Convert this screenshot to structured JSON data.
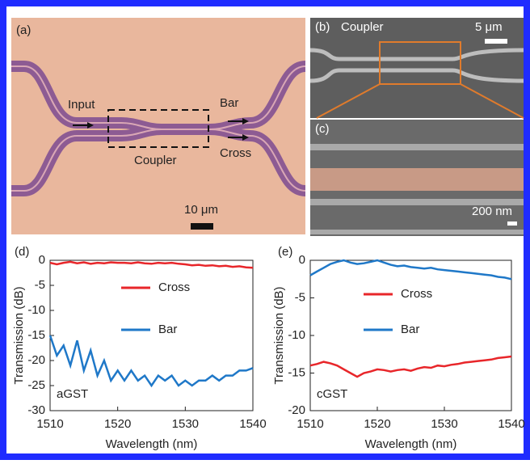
{
  "panels": {
    "a": {
      "label": "(a)",
      "input": "Input",
      "bar": "Bar",
      "cross": "Cross",
      "coupler": "Coupler",
      "scale": "10 μm"
    },
    "b": {
      "label": "(b)",
      "title": "Coupler",
      "scale": "5 μm"
    },
    "c": {
      "label": "(c)",
      "scale": "200 nm"
    }
  },
  "chart_data": [
    {
      "type": "line",
      "panel_label": "(d)",
      "annotation": "aGST",
      "xlabel": "Wavelength (nm)",
      "ylabel": "Transmission (dB)",
      "x": [
        1510,
        1511,
        1512,
        1513,
        1514,
        1515,
        1516,
        1517,
        1518,
        1519,
        1520,
        1521,
        1522,
        1523,
        1524,
        1525,
        1526,
        1527,
        1528,
        1529,
        1530,
        1531,
        1532,
        1533,
        1534,
        1535,
        1536,
        1537,
        1538,
        1539,
        1540
      ],
      "xlim": [
        1510,
        1540
      ],
      "xticks": [
        1510,
        1520,
        1530,
        1540
      ],
      "ylim": [
        -30,
        0
      ],
      "yticks": [
        0,
        -5,
        -10,
        -15,
        -20,
        -25,
        -30
      ],
      "series": [
        {
          "name": "Cross",
          "color": "#e8262a",
          "values": [
            -0.5,
            -0.8,
            -0.5,
            -0.3,
            -0.6,
            -0.4,
            -0.7,
            -0.5,
            -0.6,
            -0.4,
            -0.5,
            -0.5,
            -0.6,
            -0.4,
            -0.6,
            -0.7,
            -0.5,
            -0.6,
            -0.5,
            -0.7,
            -0.8,
            -1,
            -0.9,
            -1.1,
            -1,
            -1.2,
            -1.1,
            -1.3,
            -1.2,
            -1.4,
            -1.5
          ]
        },
        {
          "name": "Bar",
          "color": "#1f78c8",
          "values": [
            -15,
            -19,
            -17,
            -21,
            -16,
            -22,
            -18,
            -23,
            -20,
            -24,
            -22,
            -24,
            -22,
            -24,
            -23,
            -25,
            -23,
            -24,
            -23,
            -25,
            -24,
            -25,
            -24,
            -24,
            -23,
            -24,
            -23,
            -23,
            -22,
            -22,
            -21.5
          ]
        }
      ]
    },
    {
      "type": "line",
      "panel_label": "(e)",
      "annotation": "cGST",
      "xlabel": "Wavelength (nm)",
      "ylabel": "Transmission (dB)",
      "x": [
        1510,
        1511,
        1512,
        1513,
        1514,
        1515,
        1516,
        1517,
        1518,
        1519,
        1520,
        1521,
        1522,
        1523,
        1524,
        1525,
        1526,
        1527,
        1528,
        1529,
        1530,
        1531,
        1532,
        1533,
        1534,
        1535,
        1536,
        1537,
        1538,
        1539,
        1540
      ],
      "xlim": [
        1510,
        1540
      ],
      "xticks": [
        1510,
        1520,
        1530,
        1540
      ],
      "ylim": [
        -20,
        0
      ],
      "yticks": [
        0,
        -5,
        -10,
        -15,
        -20
      ],
      "series": [
        {
          "name": "Cross",
          "color": "#e8262a",
          "values": [
            -14,
            -13.8,
            -13.5,
            -13.7,
            -14,
            -14.5,
            -15,
            -15.5,
            -15,
            -14.8,
            -14.5,
            -14.6,
            -14.8,
            -14.6,
            -14.5,
            -14.7,
            -14.4,
            -14.2,
            -14.3,
            -14,
            -14.1,
            -13.9,
            -13.8,
            -13.6,
            -13.5,
            -13.4,
            -13.3,
            -13.2,
            -13,
            -12.9,
            -12.8
          ]
        },
        {
          "name": "Bar",
          "color": "#1f78c8",
          "values": [
            -2,
            -1.5,
            -1,
            -0.5,
            -0.2,
            0,
            -0.3,
            -0.5,
            -0.4,
            -0.2,
            0,
            -0.3,
            -0.6,
            -0.8,
            -0.7,
            -0.9,
            -1,
            -1.1,
            -1,
            -1.2,
            -1.3,
            -1.4,
            -1.5,
            -1.6,
            -1.7,
            -1.8,
            -1.9,
            -2,
            -2.2,
            -2.3,
            -2.5
          ]
        }
      ]
    }
  ]
}
